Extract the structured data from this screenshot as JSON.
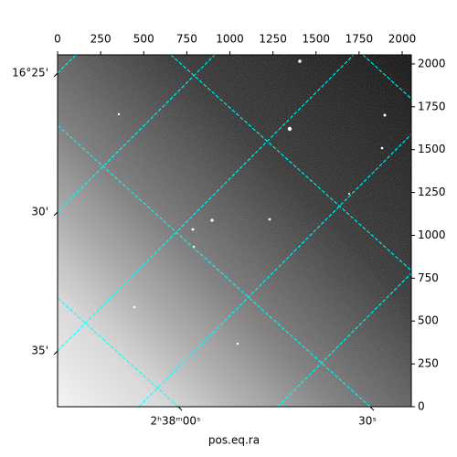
{
  "chart_data": {
    "type": "image",
    "xlabel": "pos.eq.ra",
    "xlim": [
      0,
      2053
    ],
    "xticks": [
      0,
      250,
      500,
      750,
      1000,
      1250,
      1500,
      1750,
      2000
    ],
    "ylim": [
      0,
      2053
    ],
    "yticks": [
      0,
      250,
      500,
      750,
      1000,
      1250,
      1500,
      1750,
      2000
    ],
    "wcs_xticks": [
      {
        "value": 0,
        "label": "2ʰ38ᵐ00ˢ"
      },
      {
        "value": 30,
        "label": "30ˢ"
      }
    ],
    "wcs_yticks": [
      {
        "value": 25,
        "label": "16°25'"
      },
      {
        "value": 30,
        "label": "30'"
      },
      {
        "value": 35,
        "label": "35'"
      }
    ],
    "grid": true,
    "grid_color": "#00ffff"
  }
}
